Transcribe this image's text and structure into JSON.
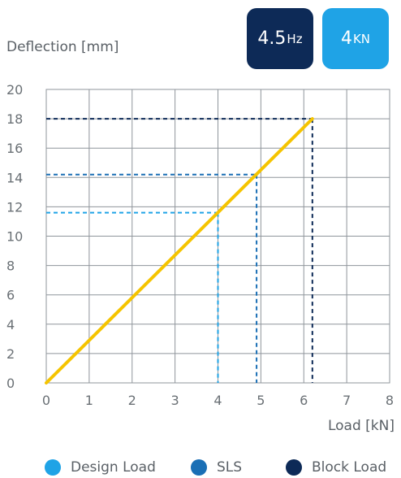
{
  "badges": {
    "frequency": {
      "value": "4.5",
      "unit": "Hz",
      "color": "#0d2a57"
    },
    "load": {
      "value": "4",
      "unit": "KN",
      "color": "#1fa3e6"
    }
  },
  "chart_data": {
    "type": "line",
    "xlabel": "Load [kN]",
    "ylabel": "Deflection [mm]",
    "xlim": [
      0,
      8
    ],
    "ylim": [
      0,
      20
    ],
    "xticks": [
      0,
      1,
      2,
      3,
      4,
      5,
      6,
      7,
      8
    ],
    "yticks": [
      0,
      2,
      4,
      6,
      8,
      10,
      12,
      14,
      16,
      18,
      20
    ],
    "grid": true,
    "line": {
      "x": [
        0,
        6.2
      ],
      "y": [
        0,
        18
      ],
      "color": "#f5c400"
    },
    "markers": [
      {
        "name": "Design Load",
        "x": 4.0,
        "y": 11.6,
        "color": "#1fa3e6"
      },
      {
        "name": "SLS",
        "x": 4.9,
        "y": 14.2,
        "color": "#1a6fb5"
      },
      {
        "name": "Block Load",
        "x": 6.2,
        "y": 18.0,
        "color": "#0d2a57"
      }
    ],
    "legend_position": "bottom"
  }
}
